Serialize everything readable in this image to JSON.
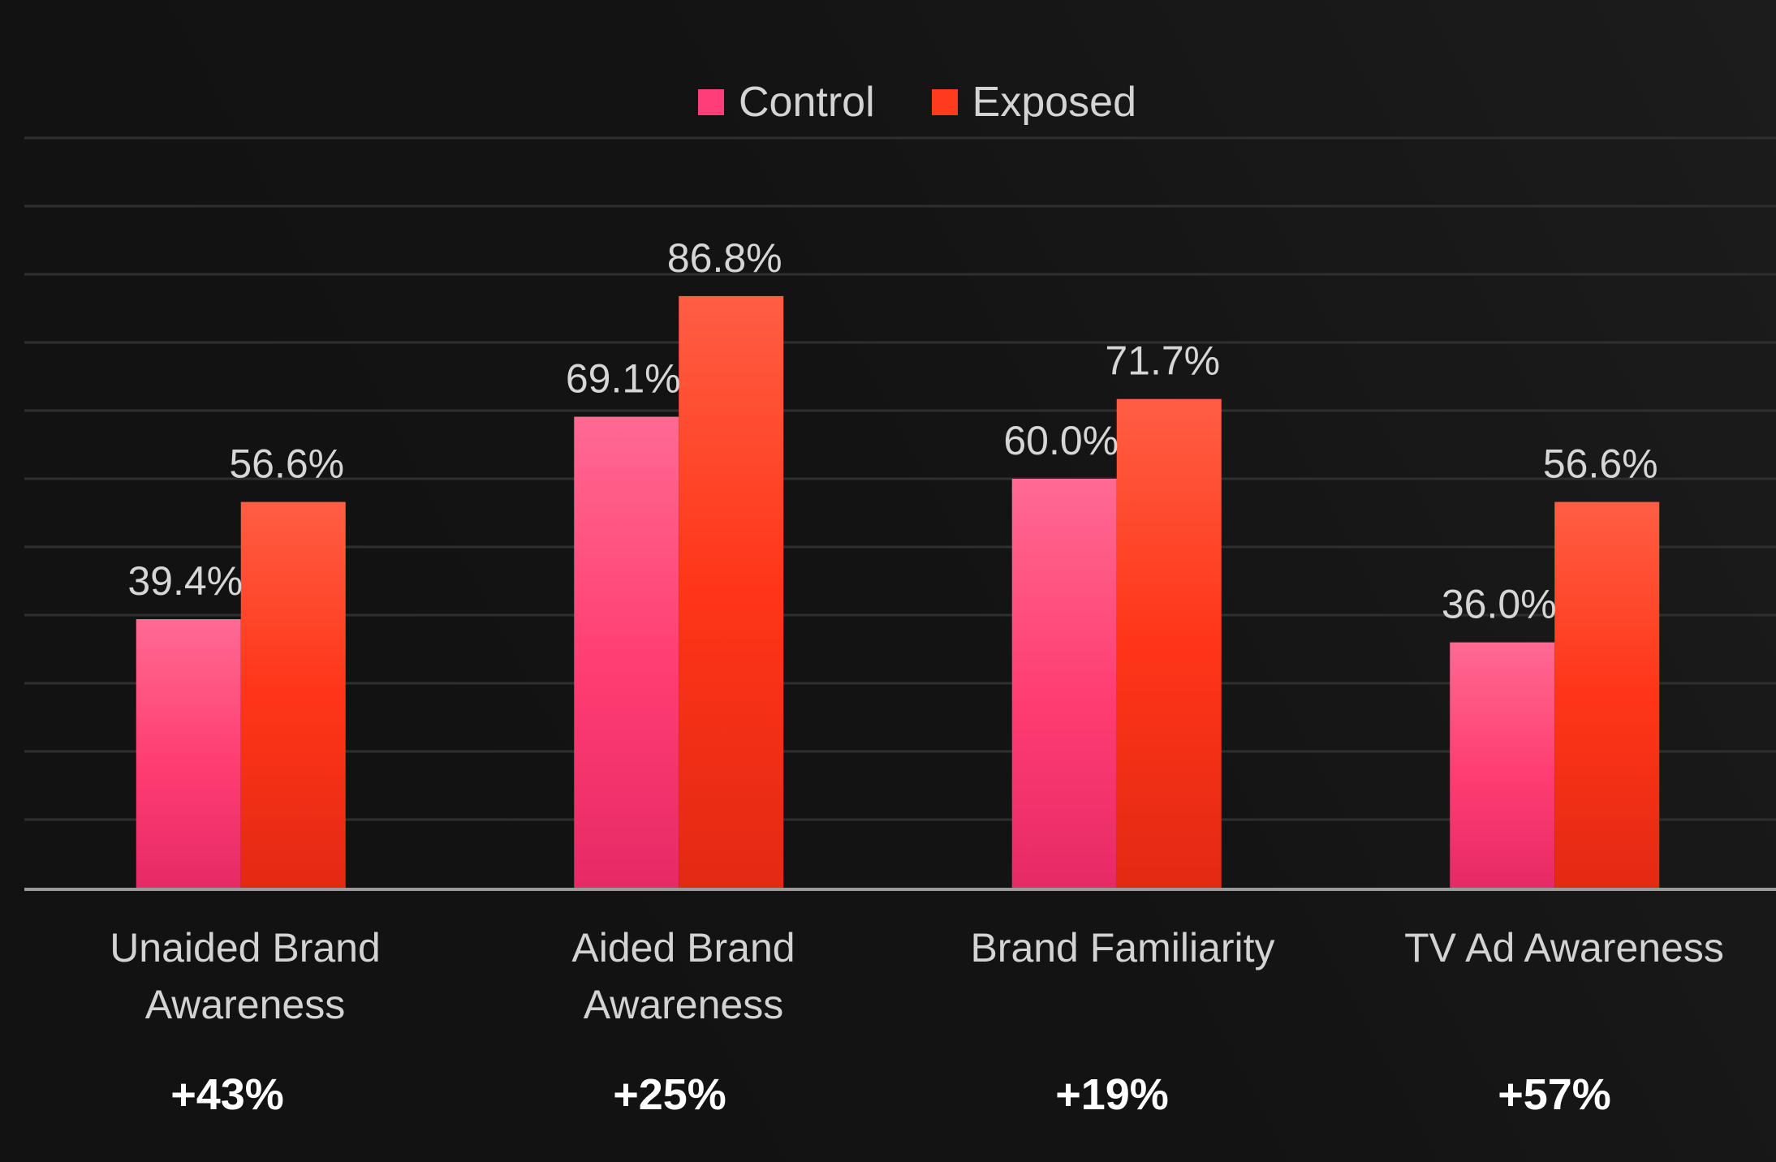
{
  "chart_data": {
    "type": "bar",
    "title": "",
    "xlabel": "",
    "ylabel": "",
    "ylim": [
      0,
      100
    ],
    "grid": true,
    "legend_position": "top-center",
    "categories": [
      "Unaided Brand\nAwareness",
      "Aided Brand\nAwareness",
      "Brand Familiarity",
      "TV Ad Awareness"
    ],
    "series": [
      {
        "name": "Control",
        "values": [
          39.4,
          69.1,
          60.0,
          36.0
        ],
        "labels": [
          "39.4%",
          "69.1%",
          "60.0%",
          "36.0%"
        ],
        "color": "#ff3d78"
      },
      {
        "name": "Exposed",
        "values": [
          56.6,
          86.8,
          71.7,
          56.6
        ],
        "labels": [
          "56.6%",
          "86.8%",
          "71.7%",
          "56.6%"
        ],
        "color": "#ff3b1f"
      }
    ],
    "lift_labels": [
      "+43%",
      "+25%",
      "+19%",
      "+57%"
    ]
  }
}
